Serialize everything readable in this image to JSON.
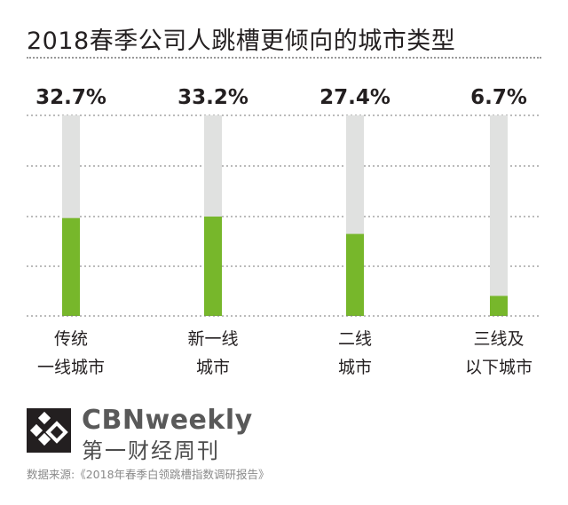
{
  "header": {
    "title": "2018春季公司人跳槽更倾向的城市类型"
  },
  "chart_data": {
    "type": "bar",
    "title": "2018春季公司人跳槽更倾向的城市类型",
    "categories": [
      [
        "传统",
        "一线城市"
      ],
      [
        "新一线",
        "城市"
      ],
      [
        "二线",
        "城市"
      ],
      [
        "三线及",
        "以下城市"
      ]
    ],
    "value_labels": [
      "32.7%",
      "33.2%",
      "27.4%",
      "6.7%"
    ],
    "values": [
      32.7,
      33.2,
      27.4,
      6.7
    ],
    "ylim": [
      0,
      67
    ],
    "grid": true,
    "colors": {
      "bar": "#77b72b",
      "track": "#e0e1e0",
      "grid": "#777777"
    }
  },
  "brand": {
    "name": "CBNweekly",
    "subtitle": "第一财经周刊"
  },
  "source": "数据来源:《2018年春季白领跳槽指数调研报告》"
}
